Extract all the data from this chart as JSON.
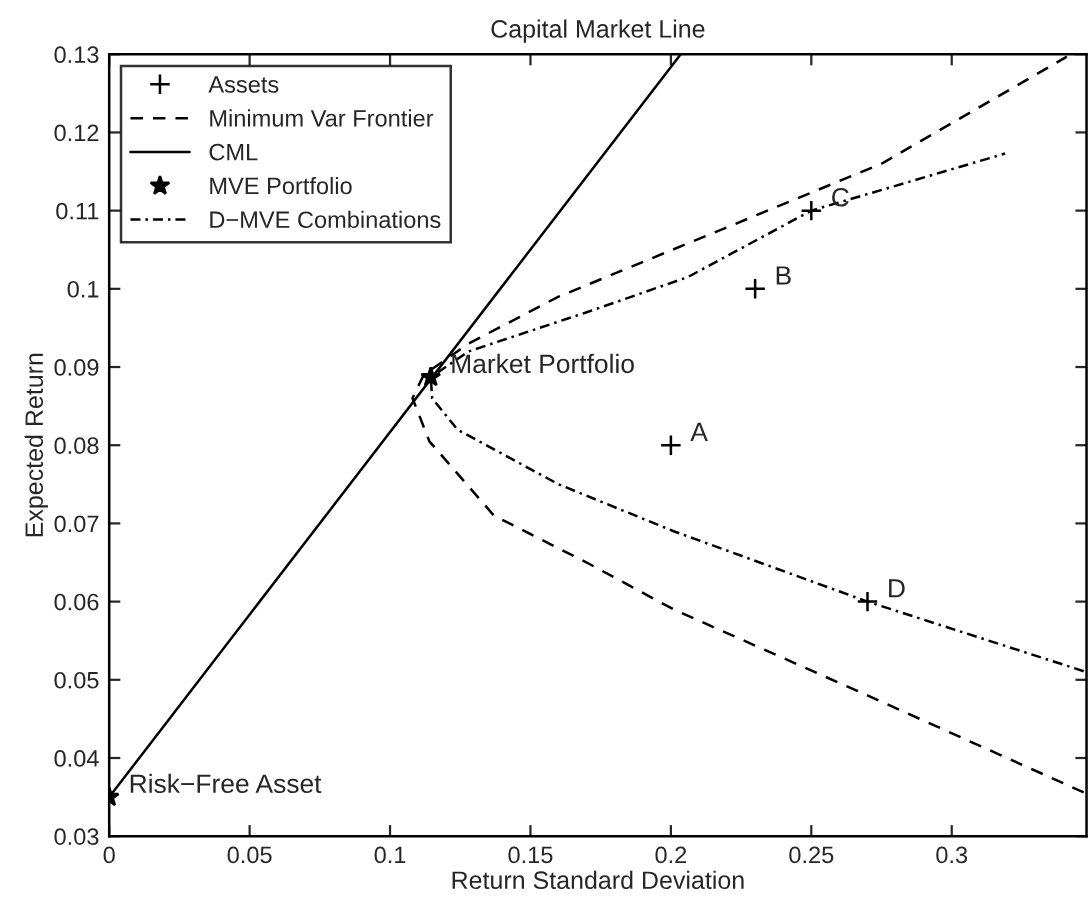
{
  "chart_data": {
    "type": "line",
    "title": "Capital Market Line",
    "xlabel": "Return Standard Deviation",
    "ylabel": "Expected Return",
    "xlim": [
      0,
      0.348
    ],
    "ylim": [
      0.03,
      0.13
    ],
    "xticks": [
      0,
      0.05,
      0.1,
      0.15,
      0.2,
      0.25,
      0.3
    ],
    "yticks": [
      0.03,
      0.04,
      0.05,
      0.06,
      0.07,
      0.08,
      0.09,
      0.1,
      0.11,
      0.12,
      0.13
    ],
    "grid": false,
    "legend": "top left",
    "series": [
      {
        "name": "Assets",
        "type": "scatter",
        "marker": "cross",
        "color": "#000000",
        "x": [
          0.2,
          0.23,
          0.25,
          0.27
        ],
        "values": [
          0.08,
          0.1,
          0.11,
          0.06
        ]
      },
      {
        "name": "Minimum Var Frontier",
        "line_style": "dashed",
        "color": "#000000",
        "x": [
          0.347,
          0.27,
          0.201,
          0.17,
          0.137,
          0.114,
          0.108,
          0.112,
          0.128,
          0.16,
          0.206,
          0.275,
          0.341
        ],
        "values": [
          0.0356,
          0.048,
          0.059,
          0.065,
          0.071,
          0.0805,
          0.086,
          0.089,
          0.093,
          0.099,
          0.1058,
          0.116,
          0.1297
        ]
      },
      {
        "name": "CML",
        "line_style": "solid",
        "color": "#000000",
        "x": [
          0,
          0.2035
        ],
        "values": [
          0.035,
          0.13
        ]
      },
      {
        "name": "MVE Portfolio",
        "type": "scatter",
        "marker": "star",
        "color": "#000000",
        "x": [
          0.1145,
          0
        ],
        "values": [
          0.0887,
          0.035
        ]
      },
      {
        "name": "D−MVE Combinations",
        "line_style": "dashdot",
        "color": "#000000",
        "x": [
          0.347,
          0.27,
          0.201,
          0.16,
          0.124,
          0.115,
          0.1145,
          0.128,
          0.17,
          0.206,
          0.25,
          0.319
        ],
        "values": [
          0.0511,
          0.06,
          0.069,
          0.075,
          0.082,
          0.086,
          0.0887,
          0.092,
          0.097,
          0.1015,
          0.11,
          0.1173
        ]
      }
    ],
    "annotations": [
      {
        "text": "A",
        "x": 0.2,
        "y": 0.08
      },
      {
        "text": "B",
        "x": 0.23,
        "y": 0.1
      },
      {
        "text": "C",
        "x": 0.25,
        "y": 0.11
      },
      {
        "text": "D",
        "x": 0.27,
        "y": 0.06
      },
      {
        "text": "Market Portfolio",
        "x": 0.1145,
        "y": 0.0887
      },
      {
        "text": "Risk−Free Asset",
        "x": 0,
        "y": 0.035
      }
    ]
  }
}
